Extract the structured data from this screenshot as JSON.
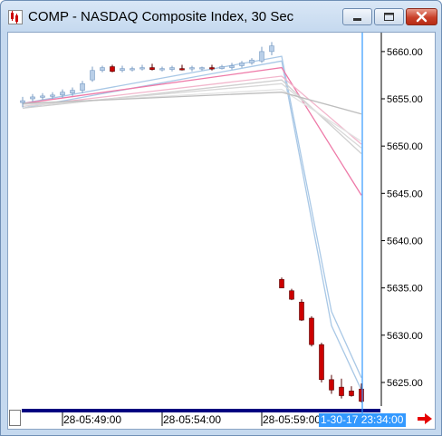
{
  "window": {
    "title": "COMP - NASDAQ Composite Index, 30 Sec",
    "app_icon": "chart-app-icon",
    "controls": {
      "minimize_icon": "minimize-icon",
      "maximize_icon": "maximize-icon",
      "close_icon": "close-icon"
    }
  },
  "colors": {
    "up_candle": "#b9cfe8",
    "down_candle": "#cc0000",
    "cursor_line": "#3399ff",
    "ma_blue": "#a9c8e6",
    "ma_pink": "#ee7aa8",
    "ma_gray": "#cfcfcf"
  },
  "chart_data": {
    "type": "candlestick",
    "y_ticks": [
      "5660.00",
      "5655.00",
      "5650.00",
      "5645.00",
      "5640.00",
      "5635.00",
      "5630.00",
      "5625.00"
    ],
    "x_labels": [
      "28-05:49:00",
      "28-05:54:00",
      "28-05:59:00"
    ],
    "cursor_label": "1-30-17 23:34:00",
    "ylim": [
      5622.5,
      5662.0
    ],
    "candles": [
      {
        "o": 5654.6,
        "h": 5655.2,
        "l": 5654.1,
        "c": 5654.8
      },
      {
        "o": 5655.0,
        "h": 5655.5,
        "l": 5654.7,
        "c": 5655.2
      },
      {
        "o": 5655.2,
        "h": 5655.6,
        "l": 5654.9,
        "c": 5655.3
      },
      {
        "o": 5655.3,
        "h": 5655.7,
        "l": 5655.0,
        "c": 5655.4
      },
      {
        "o": 5655.4,
        "h": 5656.0,
        "l": 5655.1,
        "c": 5655.7
      },
      {
        "o": 5655.6,
        "h": 5656.2,
        "l": 5655.3,
        "c": 5655.9
      },
      {
        "o": 5655.9,
        "h": 5656.9,
        "l": 5655.6,
        "c": 5656.6
      },
      {
        "o": 5657.0,
        "h": 5658.4,
        "l": 5656.8,
        "c": 5658.0
      },
      {
        "o": 5658.0,
        "h": 5658.5,
        "l": 5657.8,
        "c": 5658.3
      },
      {
        "o": 5658.4,
        "h": 5658.6,
        "l": 5657.8,
        "c": 5657.9
      },
      {
        "o": 5658.0,
        "h": 5658.5,
        "l": 5657.8,
        "c": 5658.2
      },
      {
        "o": 5658.1,
        "h": 5658.4,
        "l": 5657.9,
        "c": 5658.2
      },
      {
        "o": 5658.2,
        "h": 5658.6,
        "l": 5658.0,
        "c": 5658.3
      },
      {
        "o": 5658.3,
        "h": 5658.7,
        "l": 5658.0,
        "c": 5658.1
      },
      {
        "o": 5658.1,
        "h": 5658.4,
        "l": 5657.9,
        "c": 5658.2
      },
      {
        "o": 5658.1,
        "h": 5658.5,
        "l": 5657.9,
        "c": 5658.3
      },
      {
        "o": 5658.2,
        "h": 5658.6,
        "l": 5658.0,
        "c": 5658.1
      },
      {
        "o": 5658.2,
        "h": 5658.5,
        "l": 5657.9,
        "c": 5658.3
      },
      {
        "o": 5658.2,
        "h": 5658.4,
        "l": 5658.0,
        "c": 5658.3
      },
      {
        "o": 5658.3,
        "h": 5658.6,
        "l": 5658.0,
        "c": 5658.2
      },
      {
        "o": 5658.2,
        "h": 5658.6,
        "l": 5658.1,
        "c": 5658.4
      },
      {
        "o": 5658.3,
        "h": 5658.8,
        "l": 5658.1,
        "c": 5658.5
      },
      {
        "o": 5658.5,
        "h": 5659.0,
        "l": 5658.3,
        "c": 5658.8
      },
      {
        "o": 5658.8,
        "h": 5659.3,
        "l": 5658.6,
        "c": 5659.1
      },
      {
        "o": 5659.0,
        "h": 5660.5,
        "l": 5658.8,
        "c": 5660.0
      },
      {
        "o": 5660.0,
        "h": 5661.0,
        "l": 5659.6,
        "c": 5660.6
      },
      {
        "o": 5635.9,
        "h": 5636.1,
        "l": 5635.0,
        "c": 5635.0
      },
      {
        "o": 5634.7,
        "h": 5634.9,
        "l": 5633.7,
        "c": 5633.8
      },
      {
        "o": 5633.5,
        "h": 5633.8,
        "l": 5631.5,
        "c": 5631.6
      },
      {
        "o": 5631.8,
        "h": 5632.0,
        "l": 5628.8,
        "c": 5629.0
      },
      {
        "o": 5629.0,
        "h": 5629.2,
        "l": 5625.0,
        "c": 5625.3
      },
      {
        "o": 5625.3,
        "h": 5625.8,
        "l": 5623.8,
        "c": 5624.2
      },
      {
        "o": 5624.5,
        "h": 5625.4,
        "l": 5623.3,
        "c": 5623.6
      },
      {
        "o": 5624.1,
        "h": 5624.6,
        "l": 5623.5,
        "c": 5623.6
      },
      {
        "o": 5624.3,
        "h": 5624.9,
        "l": 5622.9,
        "c": 5623.0
      }
    ],
    "moving_averages": [
      {
        "color": "#a9c8e6",
        "points": [
          [
            0,
            5654.5
          ],
          [
            26,
            5659.5
          ],
          [
            31,
            5632.5
          ],
          [
            34,
            5625.5
          ]
        ]
      },
      {
        "color": "#a9c8e6",
        "points": [
          [
            0,
            5654.0
          ],
          [
            26,
            5659.0
          ],
          [
            31,
            5631.0
          ],
          [
            34,
            5624.2
          ]
        ]
      },
      {
        "color": "#ee7aa8",
        "points": [
          [
            0,
            5654.5
          ],
          [
            26,
            5658.3
          ],
          [
            34,
            5644.8
          ]
        ]
      },
      {
        "color": "#f2b6cc",
        "points": [
          [
            0,
            5654.2
          ],
          [
            26,
            5657.4
          ],
          [
            34,
            5650.2
          ]
        ]
      },
      {
        "color": "#cfcfcf",
        "points": [
          [
            0,
            5654.0
          ],
          [
            26,
            5657.0
          ],
          [
            34,
            5649.2
          ]
        ]
      },
      {
        "color": "#d8d8d8",
        "points": [
          [
            0,
            5654.2
          ],
          [
            26,
            5656.6
          ],
          [
            34,
            5649.8
          ]
        ]
      },
      {
        "color": "#e2e2e2",
        "points": [
          [
            0,
            5654.4
          ],
          [
            26,
            5656.0
          ],
          [
            34,
            5650.5
          ]
        ]
      },
      {
        "color": "#bdbdbd",
        "points": [
          [
            0,
            5654.5
          ],
          [
            26,
            5655.7
          ],
          [
            34,
            5653.4
          ]
        ]
      }
    ]
  }
}
